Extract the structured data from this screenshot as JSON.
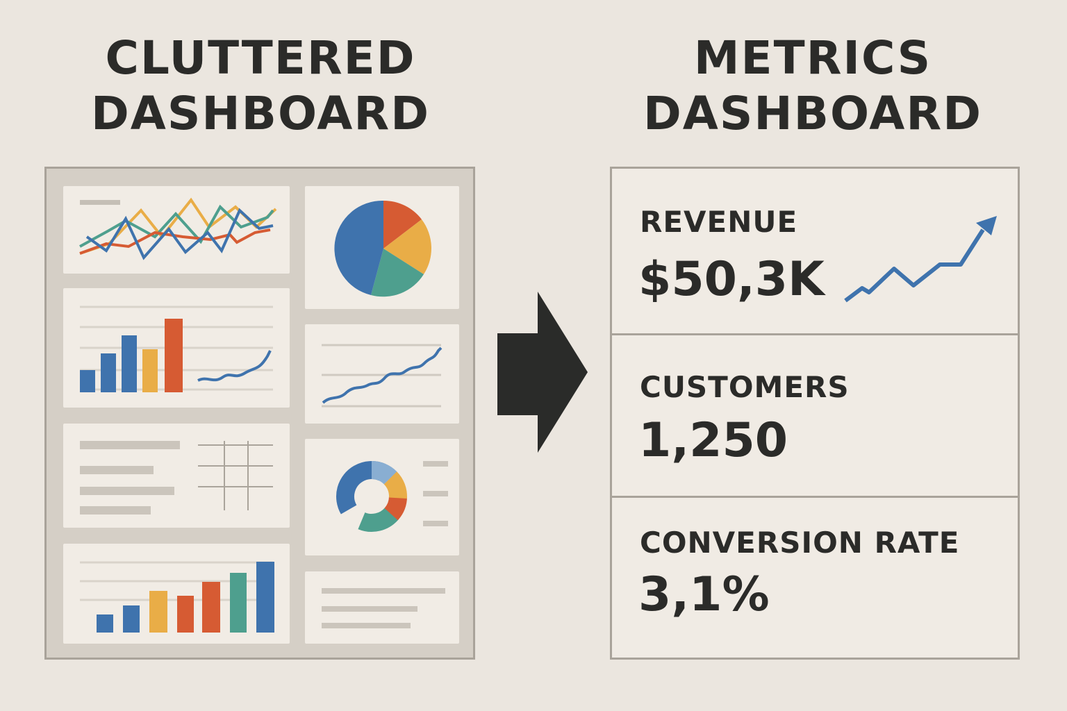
{
  "left_title": {
    "line1": "CLUTTERED",
    "line2": "DASHBOARD"
  },
  "right_title": {
    "line1": "METRICS",
    "line2": "DASHBOARD"
  },
  "metrics": [
    {
      "label": "REVENUE",
      "value": "$50,3K"
    },
    {
      "label": "CUSTOMERS",
      "value": "1,250"
    },
    {
      "label": "CONVERSION RATE",
      "value": "3,1%"
    }
  ],
  "colors": {
    "background": "#ebe6df",
    "text": "#2b2b29",
    "blue": "#3f73ad",
    "orange": "#d65b33",
    "yellow": "#e9ad47",
    "teal": "#4e9f8e"
  }
}
